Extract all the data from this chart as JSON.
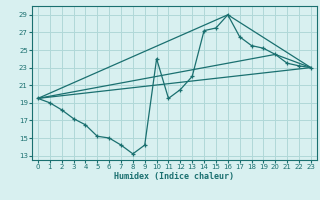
{
  "xlabel": "Humidex (Indice chaleur)",
  "bg_color": "#d8f0f0",
  "grid_color": "#b0d8d8",
  "line_color": "#1a7070",
  "xlim": [
    -0.5,
    23.5
  ],
  "ylim": [
    12.5,
    30
  ],
  "xticks": [
    0,
    1,
    2,
    3,
    4,
    5,
    6,
    7,
    8,
    9,
    10,
    11,
    12,
    13,
    14,
    15,
    16,
    17,
    18,
    19,
    20,
    21,
    22,
    23
  ],
  "yticks": [
    13,
    15,
    17,
    19,
    21,
    23,
    25,
    27,
    29
  ],
  "curve_x": [
    0,
    1,
    2,
    3,
    4,
    5,
    6,
    7,
    8,
    9,
    10,
    11,
    12,
    13,
    14,
    15,
    16,
    17,
    18,
    19,
    20,
    21,
    22,
    23
  ],
  "curve_y": [
    19.5,
    19.0,
    18.2,
    17.2,
    16.5,
    15.2,
    15.0,
    14.2,
    13.2,
    14.2,
    24.0,
    19.5,
    20.5,
    22.0,
    27.2,
    27.5,
    29.0,
    26.5,
    25.5,
    25.2,
    24.5,
    23.5,
    23.2,
    23.0
  ],
  "line2_x": [
    0,
    23
  ],
  "line2_y": [
    19.5,
    23.0
  ],
  "line3_x": [
    0,
    16,
    23
  ],
  "line3_y": [
    19.5,
    29.0,
    23.0
  ],
  "line4_x": [
    0,
    20,
    23
  ],
  "line4_y": [
    19.5,
    24.5,
    23.0
  ]
}
